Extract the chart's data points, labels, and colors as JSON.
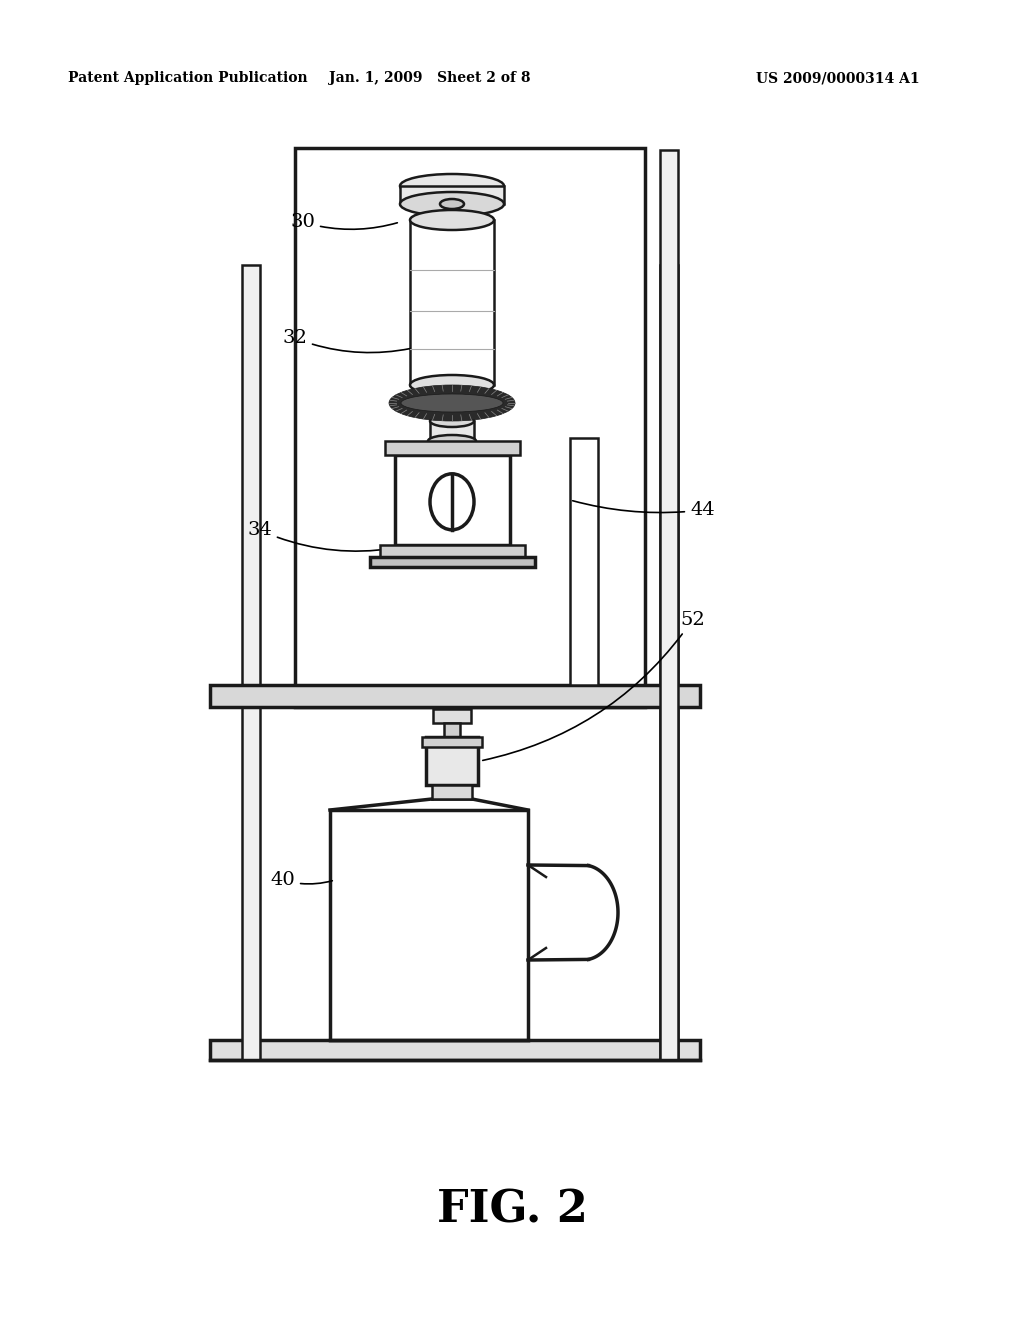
{
  "header_left": "Patent Application Publication",
  "header_center": "Jan. 1, 2009   Sheet 2 of 8",
  "header_right": "US 2009/0000314 A1",
  "figure_label": "FIG. 2",
  "bg_color": "#ffffff",
  "line_color": "#1a1a1a",
  "fig_label_size": 32,
  "header_fontsize": 10
}
